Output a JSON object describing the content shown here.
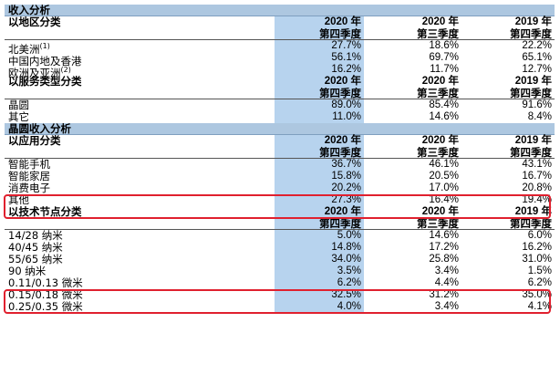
{
  "title": "收入分析",
  "region": {
    "heading": "以地区分类",
    "columns": [
      {
        "year": "2020 年",
        "quarter": "第四季度"
      },
      {
        "year": "2020 年",
        "quarter": "第三季度"
      },
      {
        "year": "2019 年",
        "quarter": "第四季度"
      }
    ],
    "rows": [
      {
        "label": "北美洲",
        "note": "(1)",
        "v": [
          "27.7%",
          "18.6%",
          "22.2%"
        ]
      },
      {
        "label": "中国内地及香港",
        "note": "",
        "v": [
          "56.1%",
          "69.7%",
          "65.1%"
        ]
      },
      {
        "label": "欧洲及亚洲",
        "note": "(2)",
        "v": [
          "16.2%",
          "11.7%",
          "12.7%"
        ]
      }
    ]
  },
  "service": {
    "heading": "以服务类型分类",
    "rows": [
      {
        "label": "晶圆",
        "v": [
          "89.0%",
          "85.4%",
          "91.6%"
        ]
      },
      {
        "label": "其它",
        "v": [
          "11.0%",
          "14.6%",
          "8.4%"
        ]
      }
    ]
  },
  "wafer_title": "晶圆收入分析",
  "application": {
    "heading": "以应用分类",
    "rows": [
      {
        "label": "智能手机",
        "v": [
          "36.7%",
          "46.1%",
          "43.1%"
        ]
      },
      {
        "label": "智能家居",
        "v": [
          "15.8%",
          "20.5%",
          "16.7%"
        ]
      },
      {
        "label": "消费电子",
        "v": [
          "20.2%",
          "17.0%",
          "20.8%"
        ]
      },
      {
        "label": "其他",
        "v": [
          "27.3%",
          "16.4%",
          "19.4%"
        ]
      }
    ]
  },
  "node": {
    "heading": "以技术节点分类",
    "rows": [
      {
        "label": "14/28 纳米",
        "v": [
          "5.0%",
          "14.6%",
          "6.0%"
        ]
      },
      {
        "label": "40/45 纳米",
        "v": [
          "14.8%",
          "17.2%",
          "16.2%"
        ]
      },
      {
        "label": "55/65 纳米",
        "v": [
          "34.0%",
          "25.8%",
          "31.0%"
        ]
      },
      {
        "label": "90 纳米",
        "v": [
          "3.5%",
          "3.4%",
          "1.5%"
        ]
      },
      {
        "label": "0.11/0.13 微米",
        "v": [
          "6.2%",
          "4.4%",
          "6.2%"
        ]
      },
      {
        "label": "0.15/0.18 微米",
        "v": [
          "32.5%",
          "31.2%",
          "35.0%"
        ]
      },
      {
        "label": "0.25/0.35 微米",
        "v": [
          "4.0%",
          "3.4%",
          "4.1%"
        ]
      }
    ]
  },
  "colors": {
    "band": "#adc7e0",
    "highlight_column": "#b7d3ee",
    "annotation": "#e0202e"
  }
}
